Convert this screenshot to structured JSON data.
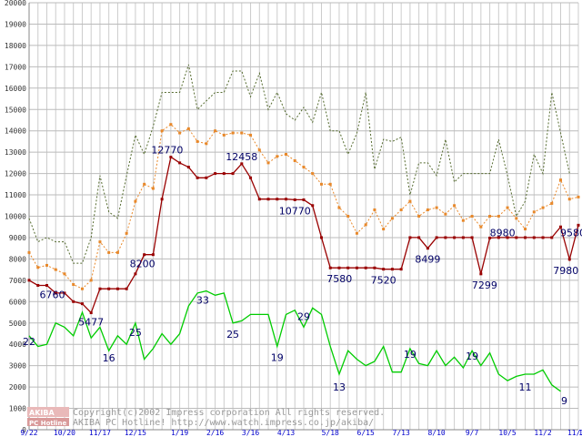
{
  "chart_data": {
    "type": "line",
    "ylim": [
      0,
      20000
    ],
    "yticks": [
      0,
      1000,
      2000,
      3000,
      4000,
      5000,
      6000,
      7000,
      8000,
      9000,
      10000,
      11000,
      12000,
      13000,
      14000,
      15000,
      16000,
      17000,
      18000,
      19000,
      20000
    ],
    "xticks": [
      {
        "label": "9/22",
        "i": 0
      },
      {
        "label": "10/20",
        "i": 4
      },
      {
        "label": "11/17",
        "i": 8
      },
      {
        "label": "12/15",
        "i": 12
      },
      {
        "label": "1/19",
        "i": 17
      },
      {
        "label": "2/16",
        "i": 21
      },
      {
        "label": "3/16",
        "i": 25
      },
      {
        "label": "4/13",
        "i": 29
      },
      {
        "label": "5/18",
        "i": 34
      },
      {
        "label": "6/15",
        "i": 38
      },
      {
        "label": "7/13",
        "i": 42
      },
      {
        "label": "8/10",
        "i": 46
      },
      {
        "label": "9/7",
        "i": 50
      },
      {
        "label": "10/5",
        "i": 54
      },
      {
        "label": "11/2",
        "i": 58
      },
      {
        "label": "11/30",
        "i": 62
      },
      {
        "label": "12/7",
        "i": 63
      }
    ],
    "grid": true,
    "series": [
      {
        "color": "#556b2f",
        "style": "dotted",
        "markers": false,
        "values": [
          9900,
          8800,
          9000,
          8800,
          8800,
          7800,
          7800,
          9000,
          11900,
          10200,
          9900,
          11900,
          13800,
          12900,
          14200,
          15800,
          15800,
          15800,
          17100,
          15000,
          15400,
          15800,
          15800,
          16800,
          16800,
          15600,
          16700,
          15000,
          15800,
          14800,
          14500,
          15100,
          14400,
          15800,
          14000,
          14000,
          12900,
          13900,
          15800,
          12200,
          13600,
          13500,
          13700,
          11000,
          12500,
          12500,
          11900,
          13600,
          11600,
          12000,
          12000,
          12000,
          12000,
          13600,
          11900,
          10000,
          10700,
          12900,
          12000,
          15800,
          13900,
          12000
        ]
      },
      {
        "color": "#e8882a",
        "style": "dotted",
        "markers": true,
        "values": [
          8300,
          7600,
          7700,
          7500,
          7300,
          6800,
          6600,
          7000,
          8800,
          8300,
          8300,
          9200,
          10700,
          11500,
          11300,
          14000,
          14300,
          13900,
          14100,
          13500,
          13400,
          14000,
          13800,
          13900,
          13900,
          13800,
          13100,
          12500,
          12800,
          12900,
          12600,
          12300,
          12000,
          11500,
          11500,
          10400,
          10000,
          9200,
          9600,
          10300,
          9400,
          9900,
          10300,
          10700,
          10000,
          10300,
          10400,
          10100,
          10500,
          9800,
          10000,
          9500,
          10000,
          10000,
          10400,
          9900,
          9400,
          10200,
          10400,
          10600,
          11700,
          10800,
          10900
        ]
      },
      {
        "color": "#990000",
        "style": "solid",
        "markers": true,
        "values": [
          7000,
          6760,
          6760,
          6400,
          6400,
          6000,
          5900,
          5477,
          6600,
          6600,
          6600,
          6600,
          7300,
          8200,
          8200,
          10800,
          12770,
          12500,
          12300,
          11800,
          11800,
          12000,
          12000,
          12000,
          12458,
          11800,
          10800,
          10800,
          10800,
          10800,
          10770,
          10770,
          10500,
          9000,
          7580,
          7580,
          7580,
          7580,
          7580,
          7580,
          7520,
          7520,
          7520,
          9000,
          9000,
          8499,
          9000,
          9000,
          9000,
          9000,
          9000,
          7299,
          8980,
          9000,
          9000,
          9000,
          9000,
          9000,
          9000,
          9000,
          9500,
          7980,
          9580
        ]
      },
      {
        "color": "#00cc00",
        "style": "solid",
        "markers": false,
        "values": [
          4400,
          3900,
          4000,
          5000,
          4800,
          4400,
          5500,
          4300,
          4800,
          3700,
          4400,
          4000,
          5000,
          3300,
          3800,
          4500,
          4000,
          4500,
          5800,
          6400,
          6500,
          6300,
          6400,
          5000,
          5100,
          5400,
          5400,
          5400,
          3900,
          5400,
          5600,
          4800,
          5700,
          5400,
          3900,
          2600,
          3700,
          3300,
          3000,
          3200,
          3900,
          2700,
          2700,
          3800,
          3100,
          3000,
          3700,
          3000,
          3400,
          2900,
          3700,
          3000,
          3600,
          2600,
          2300,
          2500,
          2600,
          2600,
          2800,
          2100,
          1800
        ]
      }
    ],
    "data_labels": [
      {
        "text": "6760",
        "series": 2,
        "i": 2,
        "dx": 6,
        "dy": 14
      },
      {
        "text": "5477",
        "series": 2,
        "i": 7,
        "dx": 0,
        "dy": 14
      },
      {
        "text": "8200",
        "series": 2,
        "i": 13,
        "dx": -2,
        "dy": 14
      },
      {
        "text": "12770",
        "series": 2,
        "i": 16,
        "dx": -4,
        "dy": -4
      },
      {
        "text": "12458",
        "series": 2,
        "i": 24,
        "dx": 0,
        "dy": -4
      },
      {
        "text": "10770",
        "series": 2,
        "i": 30,
        "dx": 0,
        "dy": 16
      },
      {
        "text": "7580",
        "series": 2,
        "i": 34,
        "dx": 10,
        "dy": 16
      },
      {
        "text": "7520",
        "series": 2,
        "i": 40,
        "dx": 0,
        "dy": 16
      },
      {
        "text": "8499",
        "series": 2,
        "i": 45,
        "dx": 0,
        "dy": 16
      },
      {
        "text": "7299",
        "series": 2,
        "i": 51,
        "dx": 4,
        "dy": 16
      },
      {
        "text": "8980",
        "series": 2,
        "i": 52,
        "dx": 14,
        "dy": -2
      },
      {
        "text": "7980",
        "series": 2,
        "i": 61,
        "dx": -4,
        "dy": 16
      },
      {
        "text": "9580",
        "series": 2,
        "i": 62,
        "dx": -6,
        "dy": 12
      },
      {
        "text": "22",
        "series": 3,
        "i": 0,
        "dx": 0,
        "dy": 10
      },
      {
        "text": "16",
        "series": 3,
        "i": 9,
        "dx": 0,
        "dy": 12
      },
      {
        "text": "25",
        "series": 3,
        "i": 12,
        "dx": 0,
        "dy": 14
      },
      {
        "text": "33",
        "series": 3,
        "i": 20,
        "dx": -4,
        "dy": 14
      },
      {
        "text": "25",
        "series": 3,
        "i": 23,
        "dx": 0,
        "dy": 16
      },
      {
        "text": "19",
        "series": 3,
        "i": 28,
        "dx": 0,
        "dy": 16
      },
      {
        "text": "29",
        "series": 3,
        "i": 31,
        "dx": 0,
        "dy": -8
      },
      {
        "text": "13",
        "series": 3,
        "i": 35,
        "dx": 0,
        "dy": 18
      },
      {
        "text": "19",
        "series": 3,
        "i": 43,
        "dx": 0,
        "dy": 10
      },
      {
        "text": "19",
        "series": 3,
        "i": 50,
        "dx": 0,
        "dy": 10
      },
      {
        "text": "11",
        "series": 3,
        "i": 56,
        "dx": 0,
        "dy": 18
      },
      {
        "text": "9",
        "series": 3,
        "i": 60,
        "dx": 4,
        "dy": 14
      }
    ]
  },
  "watermark": {
    "line1": "Copyright(c)2002 Impress corporation All rights reserved.",
    "line2": "AKIBA PC Hotline!  http://www.watch.impress.co.jp/akiba/",
    "logo_top": "AKIBA",
    "logo_bottom": "PC Hotline"
  }
}
